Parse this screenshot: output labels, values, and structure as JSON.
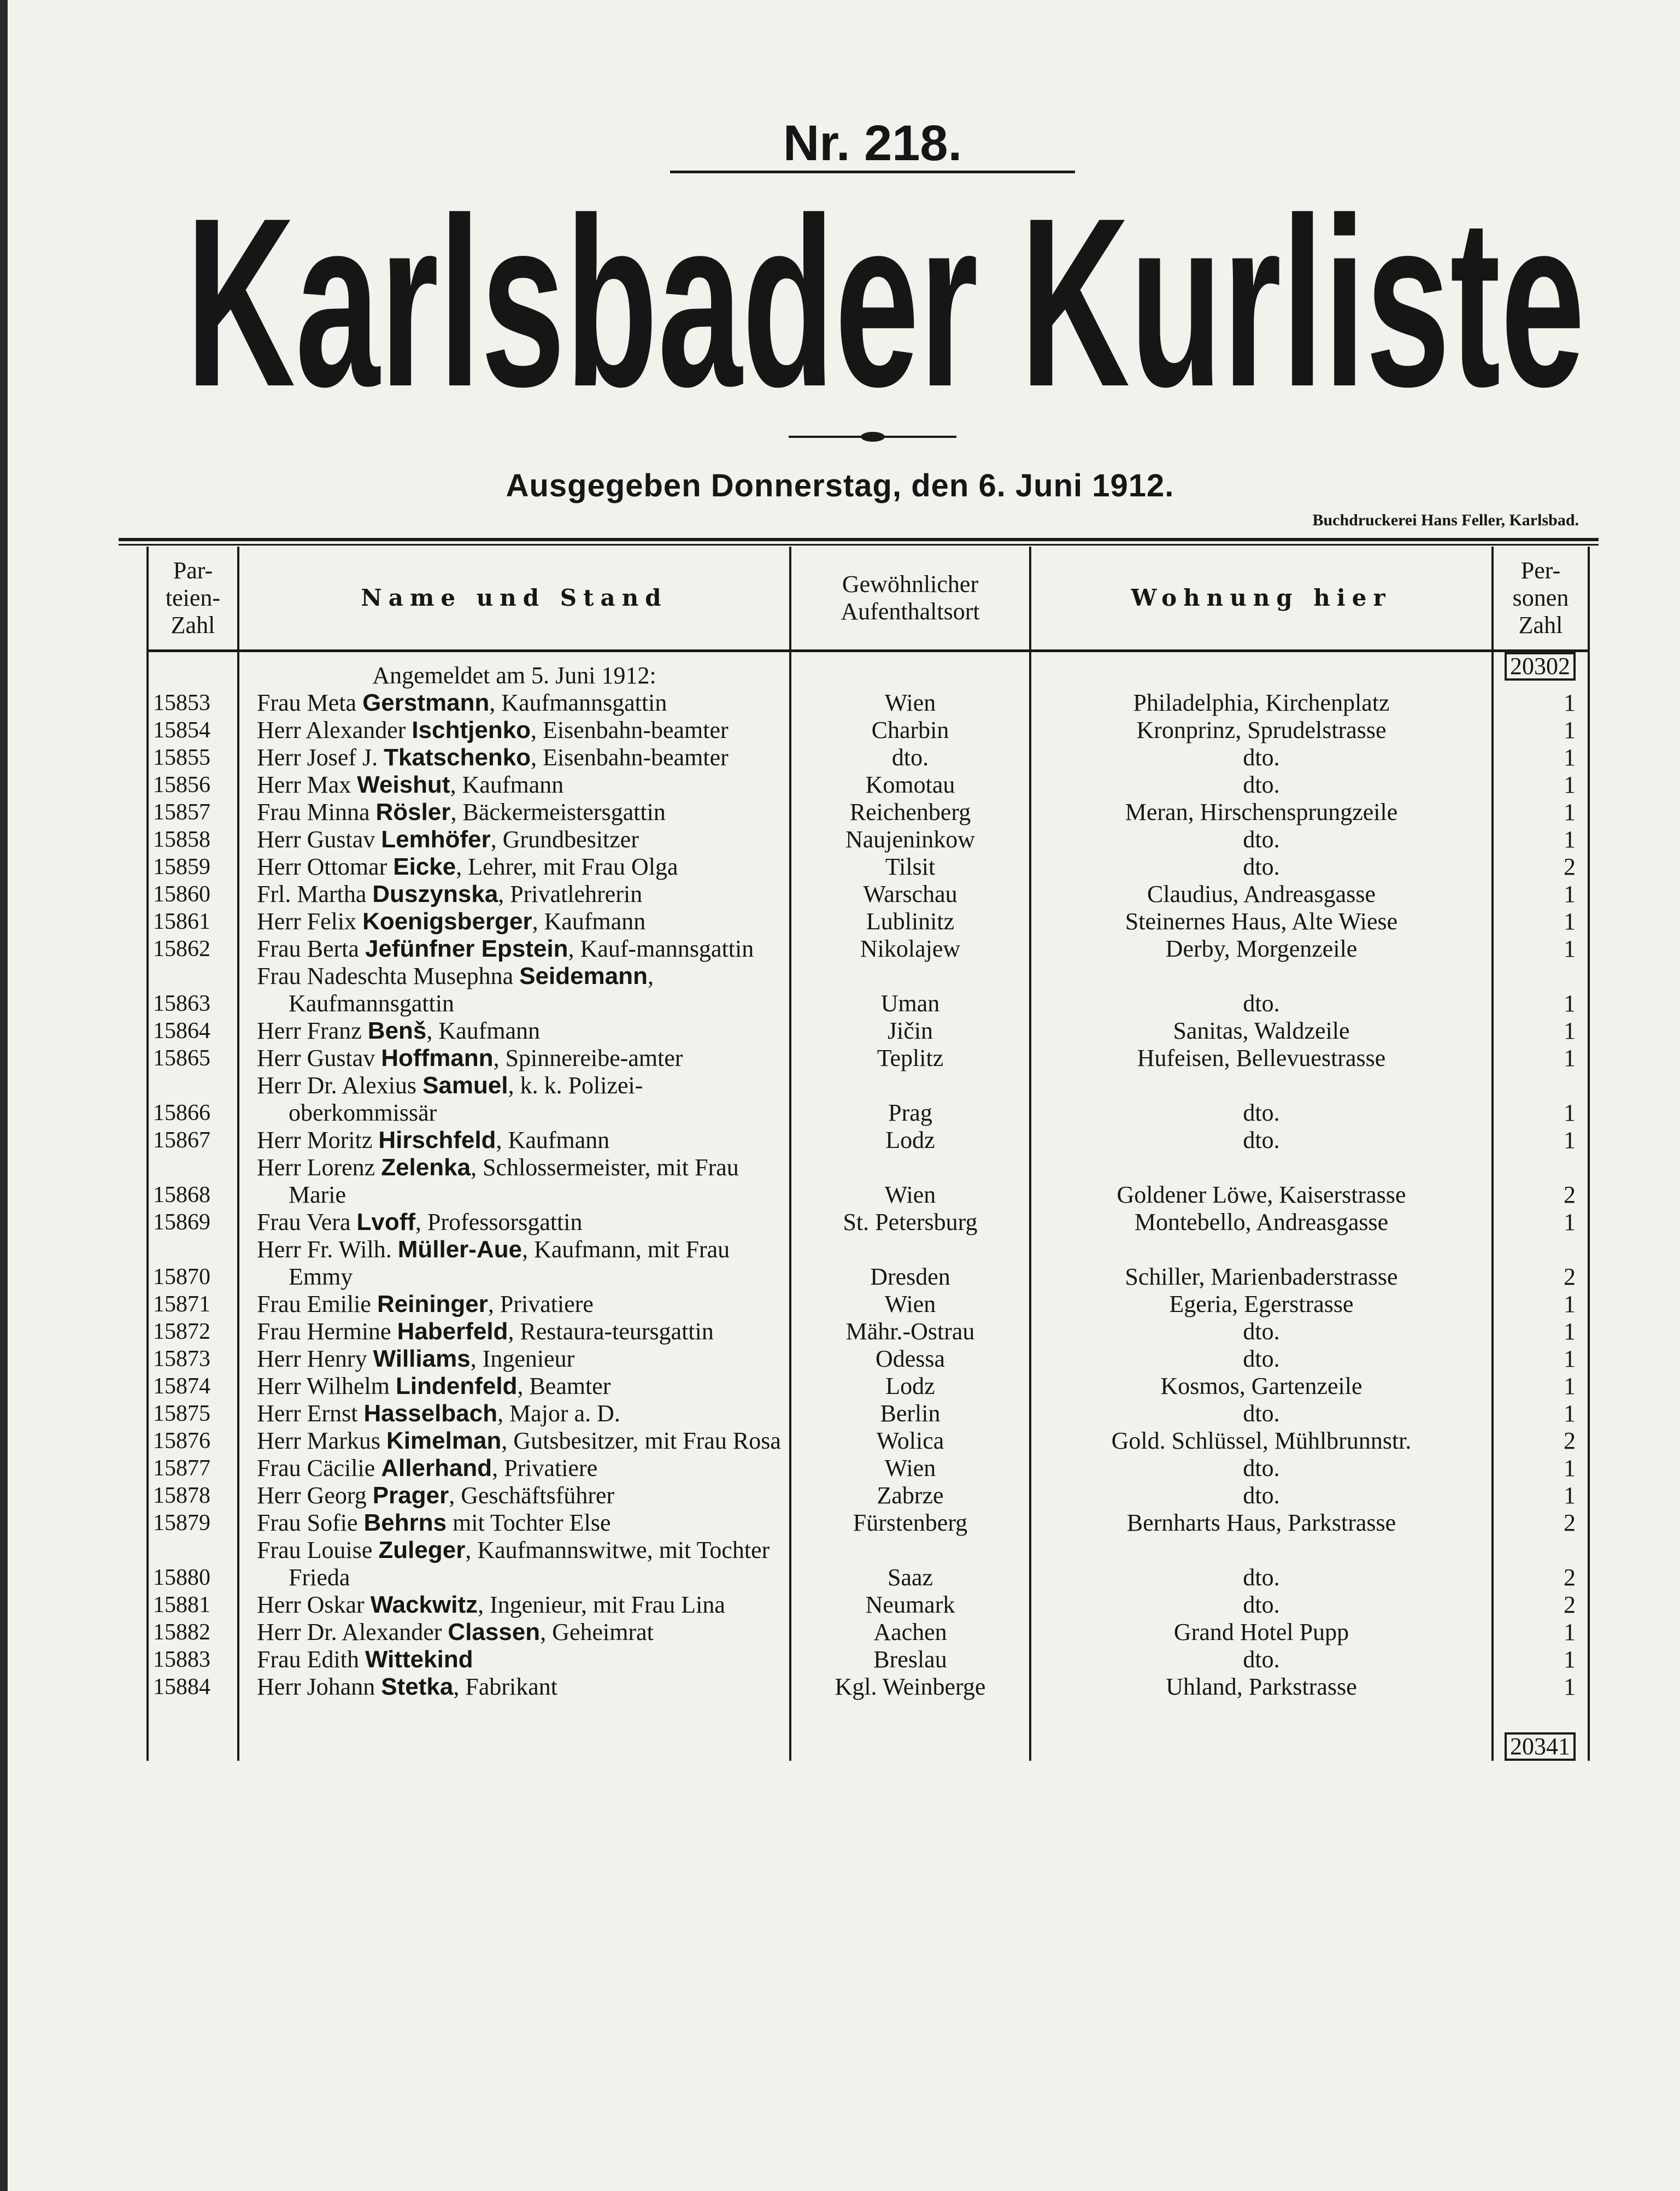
{
  "header": {
    "number": "Nr. 218.",
    "title": "Karlsbader Kurliste",
    "issued": "Ausgegeben Donnerstag, den 6. Juni 1912.",
    "printer": "Buchdruckerei Hans Feller, Karlsbad."
  },
  "table": {
    "columns": [
      "Par-\nteien-\nZahl",
      "Name und Stand",
      "Gewöhnlicher\nAufenthaltsort",
      "Wohnung hier",
      "Per-\nsonen\nZahl"
    ],
    "section": "Angemeldet am 5. Juni 1912:",
    "carried_total": "20302",
    "final_total": "20341",
    "rows": [
      {
        "number": "15853",
        "pre": "Frau Meta",
        "surname": "Gerstmann",
        "rest": ", Kaufmannsgattin",
        "origin": "Wien",
        "residence": "Philadelphia, Kirchenplatz",
        "persons": "1"
      },
      {
        "number": "15854",
        "pre": "Herr Alexander",
        "surname": "Ischtjenko",
        "rest": ", Eisenbahn-beamter",
        "origin": "Charbin",
        "residence": "Kronprinz, Sprudelstrasse",
        "persons": "1"
      },
      {
        "number": "15855",
        "pre": "Herr Josef J.",
        "surname": "Tkatschenko",
        "rest": ", Eisenbahn-beamter",
        "origin": "dto.",
        "residence": "dto.",
        "persons": "1"
      },
      {
        "number": "15856",
        "pre": "Herr Max",
        "surname": "Weishut",
        "rest": ", Kaufmann",
        "origin": "Komotau",
        "residence": "dto.",
        "persons": "1"
      },
      {
        "number": "15857",
        "pre": "Frau Minna",
        "surname": "Rösler",
        "rest": ", Bäckermeistersgattin",
        "origin": "Reichenberg",
        "residence": "Meran, Hirschensprungzeile",
        "persons": "1"
      },
      {
        "number": "15858",
        "pre": "Herr Gustav",
        "surname": "Lemhöfer",
        "rest": ", Grundbesitzer",
        "origin": "Naujeninkow",
        "residence": "dto.",
        "persons": "1"
      },
      {
        "number": "15859",
        "pre": "Herr Ottomar",
        "surname": "Eicke",
        "rest": ", Lehrer, mit Frau Olga",
        "origin": "Tilsit",
        "residence": "dto.",
        "persons": "2"
      },
      {
        "number": "15860",
        "pre": "Frl. Martha",
        "surname": "Duszynska",
        "rest": ", Privatlehrerin",
        "origin": "Warschau",
        "residence": "Claudius, Andreasgasse",
        "persons": "1"
      },
      {
        "number": "15861",
        "pre": "Herr Felix",
        "surname": "Koenigsberger",
        "rest": ", Kaufmann",
        "origin": "Lublinitz",
        "residence": "Steinernes Haus, Alte Wiese",
        "persons": "1"
      },
      {
        "number": "15862",
        "pre": "Frau Berta",
        "surname": "Jefünfner Epstein",
        "rest": ", Kauf-mannsgattin",
        "origin": "Nikolajew",
        "residence": "Derby, Morgenzeile",
        "persons": "1"
      },
      {
        "number": "15863",
        "pre": "Frau Nadeschta Musephna",
        "surname": "Seidemann",
        "rest": ", Kaufmannsgattin",
        "origin": "Uman",
        "residence": "dto.",
        "persons": "1"
      },
      {
        "number": "15864",
        "pre": "Herr Franz",
        "surname": "Benš",
        "rest": ", Kaufmann",
        "origin": "Jičin",
        "residence": "Sanitas, Waldzeile",
        "persons": "1"
      },
      {
        "number": "15865",
        "pre": "Herr Gustav",
        "surname": "Hoffmann",
        "rest": ", Spinnereibe-amter",
        "origin": "Teplitz",
        "residence": "Hufeisen, Bellevuestrasse",
        "persons": "1"
      },
      {
        "number": "15866",
        "pre": "Herr Dr. Alexius",
        "surname": "Samuel",
        "rest": ", k. k. Polizei-oberkommissär",
        "origin": "Prag",
        "residence": "dto.",
        "persons": "1"
      },
      {
        "number": "15867",
        "pre": "Herr Moritz",
        "surname": "Hirschfeld",
        "rest": ", Kaufmann",
        "origin": "Lodz",
        "residence": "dto.",
        "persons": "1"
      },
      {
        "number": "15868",
        "pre": "Herr Lorenz",
        "surname": "Zelenka",
        "rest": ", Schlossermeister, mit Frau Marie",
        "origin": "Wien",
        "residence": "Goldener Löwe, Kaiserstrasse",
        "persons": "2"
      },
      {
        "number": "15869",
        "pre": "Frau Vera",
        "surname": "Lvoff",
        "rest": ", Professorsgattin",
        "origin": "St. Petersburg",
        "residence": "Montebello, Andreasgasse",
        "persons": "1"
      },
      {
        "number": "15870",
        "pre": "Herr Fr. Wilh.",
        "surname": "Müller-Aue",
        "rest": ", Kaufmann, mit Frau Emmy",
        "origin": "Dresden",
        "residence": "Schiller, Marienbaderstrasse",
        "persons": "2"
      },
      {
        "number": "15871",
        "pre": "Frau Emilie",
        "surname": "Reininger",
        "rest": ", Privatiere",
        "origin": "Wien",
        "residence": "Egeria, Egerstrasse",
        "persons": "1"
      },
      {
        "number": "15872",
        "pre": "Frau Hermine",
        "surname": "Haberfeld",
        "rest": ", Restaura-teursgattin",
        "origin": "Mähr.-Ostrau",
        "residence": "dto.",
        "persons": "1"
      },
      {
        "number": "15873",
        "pre": "Herr Henry",
        "surname": "Williams",
        "rest": ", Ingenieur",
        "origin": "Odessa",
        "residence": "dto.",
        "persons": "1"
      },
      {
        "number": "15874",
        "pre": "Herr Wilhelm",
        "surname": "Lindenfeld",
        "rest": ", Beamter",
        "origin": "Lodz",
        "residence": "Kosmos, Gartenzeile",
        "persons": "1"
      },
      {
        "number": "15875",
        "pre": "Herr Ernst",
        "surname": "Hasselbach",
        "rest": ", Major a. D.",
        "origin": "Berlin",
        "residence": "dto.",
        "persons": "1"
      },
      {
        "number": "15876",
        "pre": "Herr Markus",
        "surname": "Kimelman",
        "rest": ", Gutsbesitzer, mit Frau Rosa",
        "origin": "Wolica",
        "residence": "Gold. Schlüssel, Mühlbrunnstr.",
        "persons": "2"
      },
      {
        "number": "15877",
        "pre": "Frau Cäcilie",
        "surname": "Allerhand",
        "rest": ", Privatiere",
        "origin": "Wien",
        "residence": "dto.",
        "persons": "1"
      },
      {
        "number": "15878",
        "pre": "Herr Georg",
        "surname": "Prager",
        "rest": ", Geschäftsführer",
        "origin": "Zabrze",
        "residence": "dto.",
        "persons": "1"
      },
      {
        "number": "15879",
        "pre": "Frau Sofie",
        "surname": "Behrns",
        "rest": " mit Tochter Else",
        "origin": "Fürstenberg",
        "residence": "Bernharts Haus, Parkstrasse",
        "persons": "2"
      },
      {
        "number": "15880",
        "pre": "Frau Louise",
        "surname": "Zuleger",
        "rest": ", Kaufmannswitwe, mit Tochter Frieda",
        "origin": "Saaz",
        "residence": "dto.",
        "persons": "2"
      },
      {
        "number": "15881",
        "pre": "Herr Oskar",
        "surname": "Wackwitz",
        "rest": ", Ingenieur, mit Frau Lina",
        "origin": "Neumark",
        "residence": "dto.",
        "persons": "2"
      },
      {
        "number": "15882",
        "pre": "Herr Dr. Alexander",
        "surname": "Classen",
        "rest": ", Geheimrat",
        "origin": "Aachen",
        "residence": "Grand Hotel Pupp",
        "persons": "1"
      },
      {
        "number": "15883",
        "pre": "Frau Edith",
        "surname": "Wittekind",
        "origin": "Breslau",
        "residence": "dto.",
        "persons": "1"
      },
      {
        "number": "15884",
        "pre": "Herr Johann",
        "surname": "Stetka",
        "rest": ", Fabrikant",
        "origin": "Kgl. Weinberge",
        "residence": "Uhland, Parkstrasse",
        "persons": "1"
      }
    ]
  }
}
